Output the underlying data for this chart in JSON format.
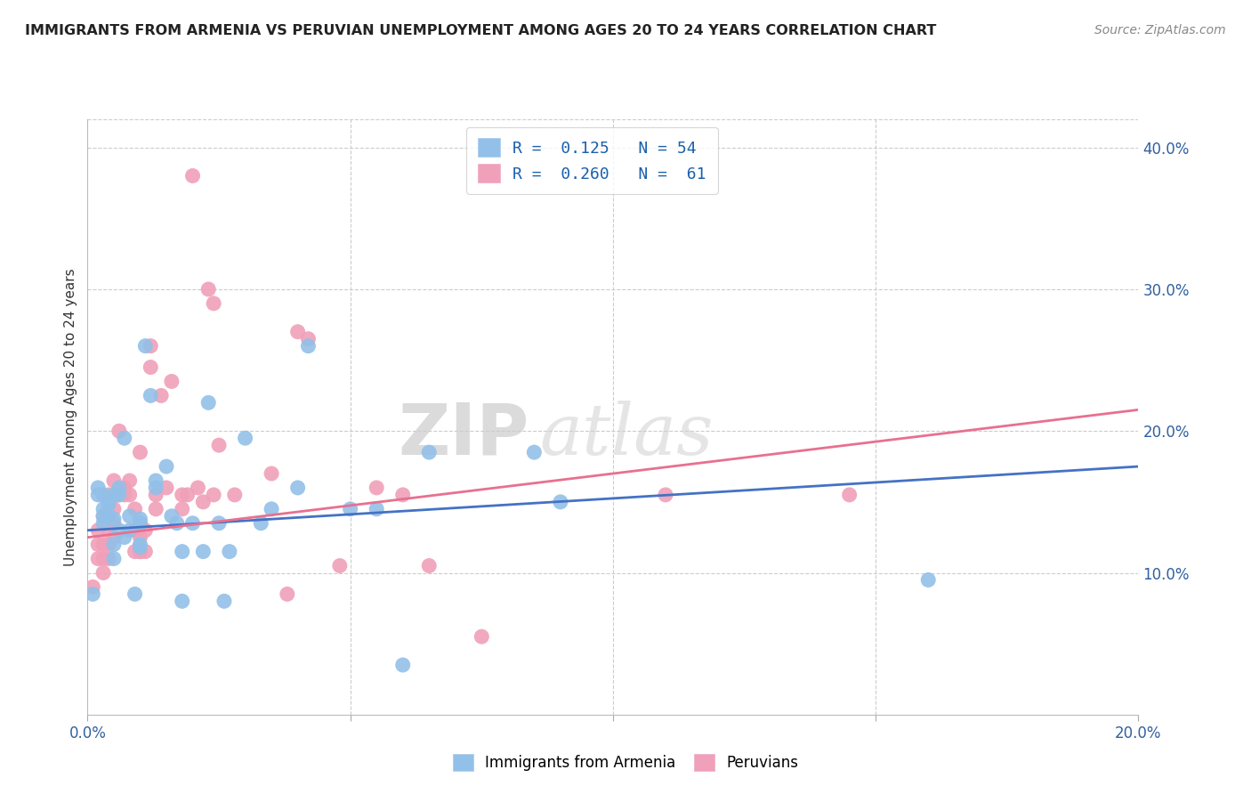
{
  "title": "IMMIGRANTS FROM ARMENIA VS PERUVIAN UNEMPLOYMENT AMONG AGES 20 TO 24 YEARS CORRELATION CHART",
  "source": "Source: ZipAtlas.com",
  "ylabel": "Unemployment Among Ages 20 to 24 years",
  "xlim": [
    0.0,
    0.2
  ],
  "ylim": [
    0.0,
    0.42
  ],
  "y_ticks_right": [
    0.1,
    0.2,
    0.3,
    0.4
  ],
  "y_tick_labels_right": [
    "10.0%",
    "20.0%",
    "30.0%",
    "40.0%"
  ],
  "watermark_zip": "ZIP",
  "watermark_atlas": "atlas",
  "color_blue": "#92C0E8",
  "color_pink": "#F0A0B8",
  "color_blue_line": "#4472C4",
  "color_pink_line": "#E87090",
  "background_color": "#FFFFFF",
  "grid_color": "#CCCCCC",
  "blue_scatter": [
    [
      0.001,
      0.085
    ],
    [
      0.002,
      0.155
    ],
    [
      0.002,
      0.16
    ],
    [
      0.003,
      0.155
    ],
    [
      0.003,
      0.145
    ],
    [
      0.003,
      0.14
    ],
    [
      0.003,
      0.135
    ],
    [
      0.004,
      0.15
    ],
    [
      0.004,
      0.14
    ],
    [
      0.004,
      0.148
    ],
    [
      0.005,
      0.12
    ],
    [
      0.005,
      0.155
    ],
    [
      0.005,
      0.138
    ],
    [
      0.005,
      0.11
    ],
    [
      0.006,
      0.155
    ],
    [
      0.006,
      0.16
    ],
    [
      0.006,
      0.13
    ],
    [
      0.007,
      0.195
    ],
    [
      0.007,
      0.125
    ],
    [
      0.008,
      0.14
    ],
    [
      0.008,
      0.13
    ],
    [
      0.009,
      0.085
    ],
    [
      0.01,
      0.138
    ],
    [
      0.01,
      0.135
    ],
    [
      0.01,
      0.118
    ],
    [
      0.01,
      0.12
    ],
    [
      0.011,
      0.26
    ],
    [
      0.012,
      0.225
    ],
    [
      0.013,
      0.165
    ],
    [
      0.013,
      0.16
    ],
    [
      0.015,
      0.175
    ],
    [
      0.016,
      0.14
    ],
    [
      0.017,
      0.135
    ],
    [
      0.018,
      0.115
    ],
    [
      0.018,
      0.08
    ],
    [
      0.02,
      0.135
    ],
    [
      0.022,
      0.115
    ],
    [
      0.023,
      0.22
    ],
    [
      0.025,
      0.135
    ],
    [
      0.026,
      0.08
    ],
    [
      0.027,
      0.115
    ],
    [
      0.03,
      0.195
    ],
    [
      0.033,
      0.135
    ],
    [
      0.035,
      0.145
    ],
    [
      0.04,
      0.16
    ],
    [
      0.042,
      0.26
    ],
    [
      0.05,
      0.145
    ],
    [
      0.055,
      0.145
    ],
    [
      0.06,
      0.035
    ],
    [
      0.065,
      0.185
    ],
    [
      0.085,
      0.185
    ],
    [
      0.09,
      0.15
    ],
    [
      0.16,
      0.095
    ]
  ],
  "pink_scatter": [
    [
      0.001,
      0.09
    ],
    [
      0.002,
      0.11
    ],
    [
      0.002,
      0.12
    ],
    [
      0.002,
      0.13
    ],
    [
      0.003,
      0.14
    ],
    [
      0.003,
      0.12
    ],
    [
      0.003,
      0.11
    ],
    [
      0.003,
      0.1
    ],
    [
      0.004,
      0.13
    ],
    [
      0.004,
      0.12
    ],
    [
      0.004,
      0.11
    ],
    [
      0.004,
      0.155
    ],
    [
      0.005,
      0.165
    ],
    [
      0.005,
      0.145
    ],
    [
      0.005,
      0.135
    ],
    [
      0.005,
      0.125
    ],
    [
      0.006,
      0.2
    ],
    [
      0.006,
      0.155
    ],
    [
      0.007,
      0.155
    ],
    [
      0.007,
      0.16
    ],
    [
      0.008,
      0.155
    ],
    [
      0.008,
      0.165
    ],
    [
      0.009,
      0.115
    ],
    [
      0.009,
      0.13
    ],
    [
      0.009,
      0.145
    ],
    [
      0.01,
      0.185
    ],
    [
      0.01,
      0.115
    ],
    [
      0.01,
      0.115
    ],
    [
      0.01,
      0.125
    ],
    [
      0.01,
      0.135
    ],
    [
      0.011,
      0.115
    ],
    [
      0.011,
      0.13
    ],
    [
      0.012,
      0.26
    ],
    [
      0.012,
      0.245
    ],
    [
      0.013,
      0.155
    ],
    [
      0.013,
      0.145
    ],
    [
      0.014,
      0.225
    ],
    [
      0.015,
      0.16
    ],
    [
      0.016,
      0.235
    ],
    [
      0.018,
      0.155
    ],
    [
      0.018,
      0.145
    ],
    [
      0.019,
      0.155
    ],
    [
      0.02,
      0.38
    ],
    [
      0.021,
      0.16
    ],
    [
      0.022,
      0.15
    ],
    [
      0.023,
      0.3
    ],
    [
      0.024,
      0.29
    ],
    [
      0.024,
      0.155
    ],
    [
      0.025,
      0.19
    ],
    [
      0.028,
      0.155
    ],
    [
      0.035,
      0.17
    ],
    [
      0.038,
      0.085
    ],
    [
      0.04,
      0.27
    ],
    [
      0.042,
      0.265
    ],
    [
      0.048,
      0.105
    ],
    [
      0.055,
      0.16
    ],
    [
      0.06,
      0.155
    ],
    [
      0.065,
      0.105
    ],
    [
      0.075,
      0.055
    ],
    [
      0.11,
      0.155
    ],
    [
      0.145,
      0.155
    ]
  ],
  "blue_line_x": [
    0.0,
    0.2
  ],
  "blue_line_y": [
    0.13,
    0.175
  ],
  "pink_line_x": [
    0.0,
    0.2
  ],
  "pink_line_y": [
    0.125,
    0.215
  ]
}
